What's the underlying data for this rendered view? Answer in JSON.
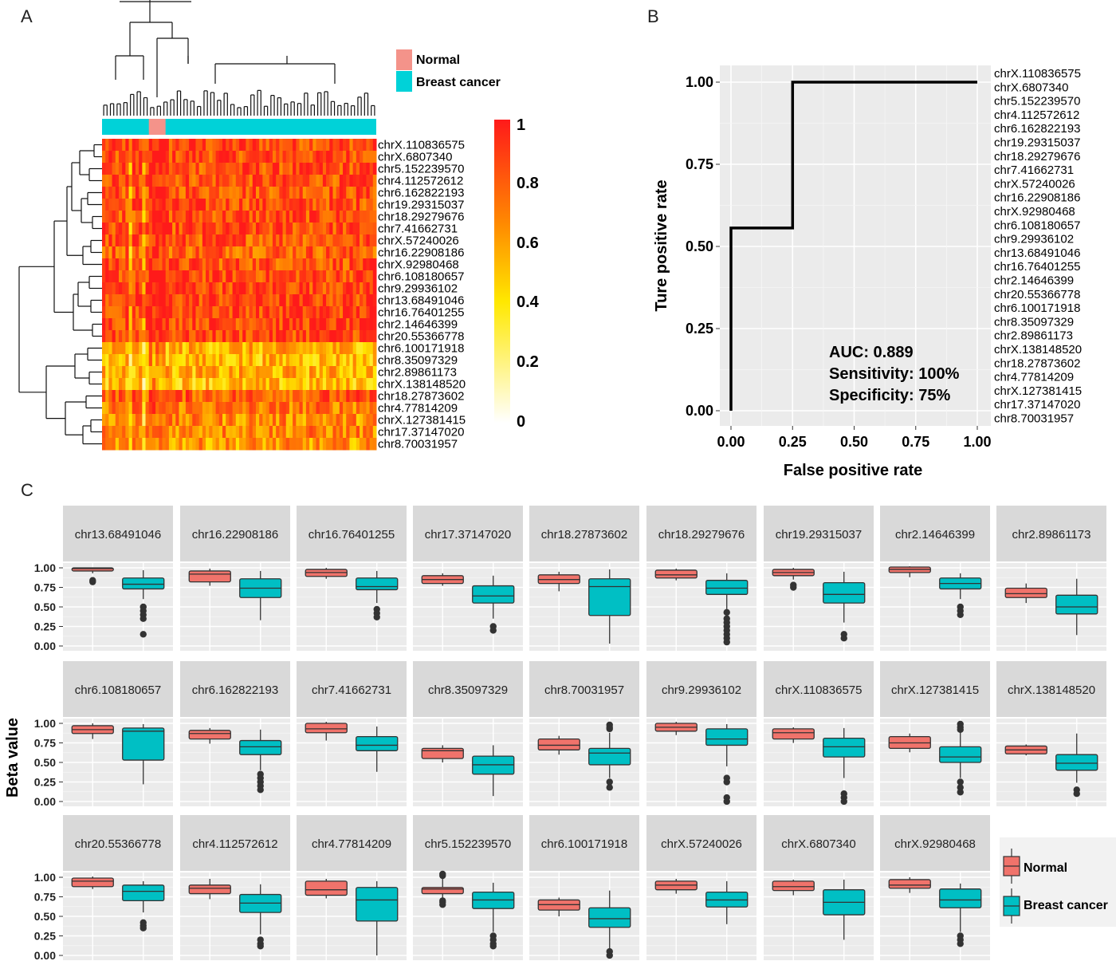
{
  "panels": {
    "a": "A",
    "b": "B",
    "c": "C"
  },
  "heatmap_legend": {
    "normal": "Normal",
    "cancer": "Breast cancer",
    "normal_color": "#f4938a",
    "cancer_color": "#00d2d8"
  },
  "colorscale_ticks": [
    "1",
    "0.8",
    "0.6",
    "0.4",
    "0.2",
    "0"
  ],
  "heatmap_rows": [
    "chrX.110836575",
    "chrX.6807340",
    "chr5.152239570",
    "chr4.112572612",
    "chr6.162822193",
    "chr19.29315037",
    "chr18.29279676",
    "chr7.41662731",
    "chrX.57240026",
    "chr16.22908186",
    "chrX.92980468",
    "chr6.108180657",
    "chr9.29936102",
    "chr13.68491046",
    "chr16.76401255",
    "chr2.14646399",
    "chr20.55366778",
    "chr6.100171918",
    "chr8.35097329",
    "chr2.89861173",
    "chrX.138148520",
    "chr18.27873602",
    "chr4.77814209",
    "chrX.127381415",
    "chr17.37147020",
    "chr8.70031957"
  ],
  "roc": {
    "xlabel": "False positive rate",
    "ylabel": "Ture positive rate",
    "xticks": [
      "0.00",
      "0.25",
      "0.50",
      "0.75",
      "1.00"
    ],
    "yticks": [
      "0.00",
      "0.25",
      "0.50",
      "0.75",
      "1.00"
    ],
    "auc": "AUC: 0.889",
    "sensitivity": "Sensitivity: 100%",
    "specificity": "Specificity: 75%"
  },
  "boxplot": {
    "ylabel": "Beta value",
    "yticks": [
      "1.00",
      "0.75",
      "0.50",
      "0.25",
      "0.00"
    ],
    "legend_normal": "Normal",
    "legend_cancer": "Breast cancer",
    "normal_color": "#f0736b",
    "cancer_color": "#00bfc4",
    "strip_color": "#d9d9d9",
    "panel_bg": "#ebebeb"
  },
  "chart_data": [
    {
      "type": "heatmap",
      "rows": [
        "chrX.110836575",
        "chrX.6807340",
        "chr5.152239570",
        "chr4.112572612",
        "chr6.162822193",
        "chr19.29315037",
        "chr18.29279676",
        "chr7.41662731",
        "chrX.57240026",
        "chr16.22908186",
        "chrX.92980468",
        "chr6.108180657",
        "chr9.29936102",
        "chr13.68491046",
        "chr16.76401255",
        "chr2.14646399",
        "chr20.55366778",
        "chr6.100171918",
        "chr8.35097329",
        "chr2.89861173",
        "chrX.138148520",
        "chr18.27873602",
        "chr4.77814209",
        "chrX.127381415",
        "chr17.37147020",
        "chr8.70031957"
      ],
      "n_columns": 82,
      "groups": [
        {
          "name": "Normal",
          "from": 14,
          "to": 19
        }
      ],
      "color_range": [
        0,
        1
      ],
      "row_mean_beta": [
        0.85,
        0.86,
        0.84,
        0.84,
        0.83,
        0.84,
        0.84,
        0.84,
        0.82,
        0.8,
        0.83,
        0.86,
        0.88,
        0.87,
        0.88,
        0.88,
        0.87,
        0.55,
        0.52,
        0.55,
        0.5,
        0.8,
        0.72,
        0.66,
        0.68,
        0.62
      ]
    },
    {
      "type": "line",
      "title": "",
      "xlabel": "False positive rate",
      "ylabel": "Ture positive rate",
      "xlim": [
        0,
        1
      ],
      "ylim": [
        0,
        1
      ],
      "x": [
        0,
        0,
        0.25,
        0.25,
        1
      ],
      "y": [
        0,
        0.556,
        0.556,
        1,
        1
      ]
    },
    {
      "type": "box",
      "ylabel": "Beta value",
      "ylim": [
        0,
        1
      ],
      "groups": [
        "Normal",
        "Breast cancer"
      ],
      "panels": [
        {
          "label": "chr13.68491046",
          "normal": {
            "q1": 0.96,
            "med": 0.99,
            "q3": 1.0,
            "lo": 0.93,
            "hi": 1.0,
            "out": [
              0.82,
              0.84
            ]
          },
          "cancer": {
            "q1": 0.73,
            "med": 0.79,
            "q3": 0.87,
            "lo": 0.6,
            "hi": 0.97,
            "out": [
              0.5,
              0.45,
              0.4,
              0.35,
              0.15
            ]
          }
        },
        {
          "label": "chr16.22908186",
          "normal": {
            "q1": 0.82,
            "med": 0.92,
            "q3": 0.96,
            "lo": 0.77,
            "hi": 0.99,
            "out": []
          },
          "cancer": {
            "q1": 0.62,
            "med": 0.74,
            "q3": 0.86,
            "lo": 0.33,
            "hi": 0.96,
            "out": []
          }
        },
        {
          "label": "chr16.76401255",
          "normal": {
            "q1": 0.89,
            "med": 0.94,
            "q3": 0.98,
            "lo": 0.86,
            "hi": 1.0,
            "out": []
          },
          "cancer": {
            "q1": 0.72,
            "med": 0.76,
            "q3": 0.87,
            "lo": 0.55,
            "hi": 0.96,
            "out": [
              0.47,
              0.42,
              0.37
            ]
          }
        },
        {
          "label": "chr17.37147020",
          "normal": {
            "q1": 0.8,
            "med": 0.85,
            "q3": 0.9,
            "lo": 0.77,
            "hi": 0.93,
            "out": []
          },
          "cancer": {
            "q1": 0.55,
            "med": 0.64,
            "q3": 0.77,
            "lo": 0.35,
            "hi": 0.9,
            "out": [
              0.25,
              0.2
            ]
          }
        },
        {
          "label": "chr18.27873602",
          "normal": {
            "q1": 0.8,
            "med": 0.85,
            "q3": 0.91,
            "lo": 0.7,
            "hi": 0.95,
            "out": []
          },
          "cancer": {
            "q1": 0.39,
            "med": 0.76,
            "q3": 0.86,
            "lo": 0.03,
            "hi": 0.98,
            "out": []
          }
        },
        {
          "label": "chr18.29279676",
          "normal": {
            "q1": 0.87,
            "med": 0.91,
            "q3": 0.97,
            "lo": 0.84,
            "hi": 0.99,
            "out": []
          },
          "cancer": {
            "q1": 0.66,
            "med": 0.74,
            "q3": 0.84,
            "lo": 0.47,
            "hi": 0.93,
            "out": [
              0.43,
              0.35,
              0.3,
              0.25,
              0.2,
              0.15,
              0.1,
              0.05
            ]
          }
        },
        {
          "label": "chr19.29315037",
          "normal": {
            "q1": 0.9,
            "med": 0.94,
            "q3": 0.98,
            "lo": 0.85,
            "hi": 1.0,
            "out": [
              0.78,
              0.75
            ]
          },
          "cancer": {
            "q1": 0.55,
            "med": 0.66,
            "q3": 0.81,
            "lo": 0.3,
            "hi": 0.95,
            "out": [
              0.15,
              0.1
            ]
          }
        },
        {
          "label": "chr2.14646399",
          "normal": {
            "q1": 0.94,
            "med": 0.98,
            "q3": 1.01,
            "lo": 0.88,
            "hi": 1.02,
            "out": []
          },
          "cancer": {
            "q1": 0.73,
            "med": 0.8,
            "q3": 0.87,
            "lo": 0.6,
            "hi": 0.93,
            "out": [
              0.5,
              0.45,
              0.4
            ]
          }
        },
        {
          "label": "chr2.89861173",
          "normal": {
            "q1": 0.62,
            "med": 0.67,
            "q3": 0.74,
            "lo": 0.55,
            "hi": 0.8,
            "out": []
          },
          "cancer": {
            "q1": 0.41,
            "med": 0.5,
            "q3": 0.65,
            "lo": 0.14,
            "hi": 0.86,
            "out": []
          }
        },
        {
          "label": "chr6.108180657",
          "normal": {
            "q1": 0.87,
            "med": 0.92,
            "q3": 0.97,
            "lo": 0.8,
            "hi": 1.0,
            "out": []
          },
          "cancer": {
            "q1": 0.53,
            "med": 0.9,
            "q3": 0.94,
            "lo": 0.22,
            "hi": 0.99,
            "out": []
          }
        },
        {
          "label": "chr6.162822193",
          "normal": {
            "q1": 0.8,
            "med": 0.87,
            "q3": 0.91,
            "lo": 0.74,
            "hi": 0.94,
            "out": []
          },
          "cancer": {
            "q1": 0.6,
            "med": 0.7,
            "q3": 0.78,
            "lo": 0.4,
            "hi": 0.92,
            "out": [
              0.35,
              0.3,
              0.25,
              0.2,
              0.15
            ]
          }
        },
        {
          "label": "chr7.41662731",
          "normal": {
            "q1": 0.88,
            "med": 0.93,
            "q3": 1.0,
            "lo": 0.78,
            "hi": 1.02,
            "out": []
          },
          "cancer": {
            "q1": 0.65,
            "med": 0.72,
            "q3": 0.83,
            "lo": 0.38,
            "hi": 0.96,
            "out": []
          }
        },
        {
          "label": "chr8.35097329",
          "normal": {
            "q1": 0.55,
            "med": 0.65,
            "q3": 0.68,
            "lo": 0.5,
            "hi": 0.72,
            "out": []
          },
          "cancer": {
            "q1": 0.35,
            "med": 0.47,
            "q3": 0.58,
            "lo": 0.07,
            "hi": 0.72,
            "out": []
          }
        },
        {
          "label": "chr8.70031957",
          "normal": {
            "q1": 0.66,
            "med": 0.72,
            "q3": 0.8,
            "lo": 0.6,
            "hi": 0.84,
            "out": []
          },
          "cancer": {
            "q1": 0.47,
            "med": 0.62,
            "q3": 0.68,
            "lo": 0.3,
            "hi": 0.88,
            "out": [
              0.98,
              0.95,
              0.93,
              0.25,
              0.18
            ]
          }
        },
        {
          "label": "chr9.29936102",
          "normal": {
            "q1": 0.9,
            "med": 0.95,
            "q3": 1.0,
            "lo": 0.85,
            "hi": 1.02,
            "out": []
          },
          "cancer": {
            "q1": 0.72,
            "med": 0.8,
            "q3": 0.93,
            "lo": 0.45,
            "hi": 0.99,
            "out": [
              0.3,
              0.25,
              0.05,
              0.0
            ]
          }
        },
        {
          "label": "chrX.110836575",
          "normal": {
            "q1": 0.8,
            "med": 0.88,
            "q3": 0.93,
            "lo": 0.75,
            "hi": 0.95,
            "out": []
          },
          "cancer": {
            "q1": 0.57,
            "med": 0.7,
            "q3": 0.81,
            "lo": 0.3,
            "hi": 0.94,
            "out": [
              0.1,
              0.05,
              0.0
            ]
          }
        },
        {
          "label": "chrX.127381415",
          "normal": {
            "q1": 0.68,
            "med": 0.75,
            "q3": 0.83,
            "lo": 0.63,
            "hi": 0.87,
            "out": []
          },
          "cancer": {
            "q1": 0.5,
            "med": 0.57,
            "q3": 0.7,
            "lo": 0.3,
            "hi": 0.9,
            "out": [
              0.99,
              0.95,
              0.92,
              0.25,
              0.18,
              0.12
            ]
          }
        },
        {
          "label": "chrX.138148520",
          "normal": {
            "q1": 0.61,
            "med": 0.66,
            "q3": 0.71,
            "lo": 0.59,
            "hi": 0.73,
            "out": []
          },
          "cancer": {
            "q1": 0.4,
            "med": 0.49,
            "q3": 0.6,
            "lo": 0.24,
            "hi": 0.87,
            "out": [
              0.15,
              0.1
            ]
          }
        },
        {
          "label": "chr20.55366778",
          "normal": {
            "q1": 0.88,
            "med": 0.95,
            "q3": 0.99,
            "lo": 0.85,
            "hi": 1.01,
            "out": []
          },
          "cancer": {
            "q1": 0.7,
            "med": 0.82,
            "q3": 0.9,
            "lo": 0.55,
            "hi": 0.95,
            "out": [
              0.42,
              0.38,
              0.35
            ]
          }
        },
        {
          "label": "chr4.112572612",
          "normal": {
            "q1": 0.79,
            "med": 0.86,
            "q3": 0.9,
            "lo": 0.72,
            "hi": 0.98,
            "out": []
          },
          "cancer": {
            "q1": 0.55,
            "med": 0.67,
            "q3": 0.78,
            "lo": 0.27,
            "hi": 0.91,
            "out": [
              0.2,
              0.15,
              0.12
            ]
          }
        },
        {
          "label": "chr4.77814209",
          "normal": {
            "q1": 0.77,
            "med": 0.84,
            "q3": 0.95,
            "lo": 0.73,
            "hi": 0.98,
            "out": []
          },
          "cancer": {
            "q1": 0.44,
            "med": 0.71,
            "q3": 0.87,
            "lo": 0.0,
            "hi": 0.95,
            "out": []
          }
        },
        {
          "label": "chr5.152239570",
          "normal": {
            "q1": 0.79,
            "med": 0.85,
            "q3": 0.87,
            "lo": 0.72,
            "hi": 0.98,
            "out": [
              1.05,
              1.02,
              0.7,
              0.68,
              0.65
            ]
          },
          "cancer": {
            "q1": 0.6,
            "med": 0.71,
            "q3": 0.81,
            "lo": 0.3,
            "hi": 0.93,
            "out": [
              0.25,
              0.2,
              0.15,
              0.12
            ]
          }
        },
        {
          "label": "chr6.100171918",
          "normal": {
            "q1": 0.58,
            "med": 0.65,
            "q3": 0.71,
            "lo": 0.5,
            "hi": 0.74,
            "out": []
          },
          "cancer": {
            "q1": 0.36,
            "med": 0.47,
            "q3": 0.61,
            "lo": 0.08,
            "hi": 0.83,
            "out": [
              0.05,
              0.0
            ]
          }
        },
        {
          "label": "chrX.57240026",
          "normal": {
            "q1": 0.84,
            "med": 0.9,
            "q3": 0.95,
            "lo": 0.79,
            "hi": 0.98,
            "out": []
          },
          "cancer": {
            "q1": 0.62,
            "med": 0.71,
            "q3": 0.81,
            "lo": 0.4,
            "hi": 0.95,
            "out": []
          }
        },
        {
          "label": "chrX.6807340",
          "normal": {
            "q1": 0.83,
            "med": 0.88,
            "q3": 0.95,
            "lo": 0.77,
            "hi": 0.97,
            "out": []
          },
          "cancer": {
            "q1": 0.52,
            "med": 0.68,
            "q3": 0.84,
            "lo": 0.2,
            "hi": 0.97,
            "out": []
          }
        },
        {
          "label": "chrX.92980468",
          "normal": {
            "q1": 0.86,
            "med": 0.9,
            "q3": 0.97,
            "lo": 0.8,
            "hi": 1.0,
            "out": []
          },
          "cancer": {
            "q1": 0.61,
            "med": 0.71,
            "q3": 0.85,
            "lo": 0.3,
            "hi": 0.92,
            "out": [
              0.25,
              0.2,
              0.15
            ]
          }
        }
      ]
    }
  ]
}
